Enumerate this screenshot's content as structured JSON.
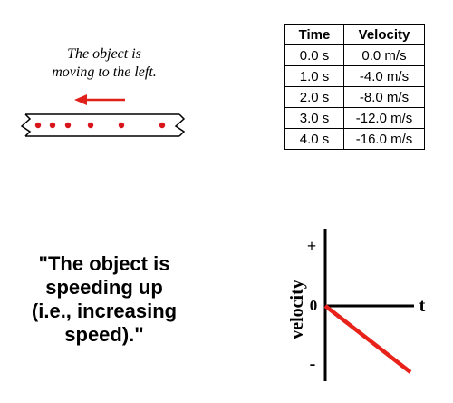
{
  "diagram": {
    "caption_line1": "The object is",
    "caption_line2": "moving to the left.",
    "arrow_color": "#e0201b",
    "dot_color": "#d8151a",
    "dot_count": 6
  },
  "table": {
    "headers": [
      "Time",
      "Velocity"
    ],
    "rows": [
      [
        "0.0 s",
        "0.0 m/s"
      ],
      [
        "1.0 s",
        "-4.0 m/s"
      ],
      [
        "2.0 s",
        "-8.0 m/s"
      ],
      [
        "3.0 s",
        "-12.0 m/s"
      ],
      [
        "4.0 s",
        "-16.0 m/s"
      ]
    ]
  },
  "quote": {
    "line1": "\"The object is",
    "line2": "speeding up",
    "line3": "(i.e., increasing",
    "line4": "speed).\""
  },
  "graph": {
    "ylabel": "velocity",
    "plus_label": "+",
    "zero_label": "0",
    "minus_label": "-",
    "t_label": "t",
    "line_color": "#e8221a"
  }
}
